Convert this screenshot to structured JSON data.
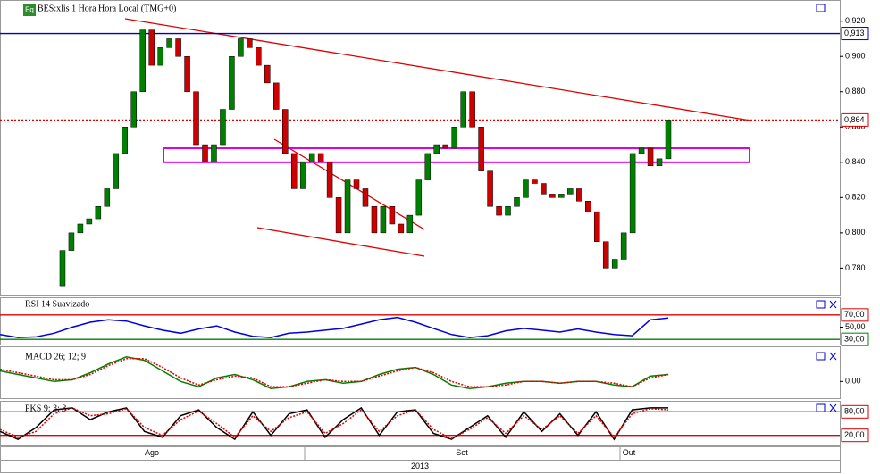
{
  "time_axis": {
    "months": [
      "Ago",
      "Set",
      "Out"
    ],
    "year": "2013"
  },
  "chart_data": [
    {
      "type": "candlestick",
      "title": "BES:xlis 1 Hora Hora Local (TMG+0)",
      "icon": "Eq",
      "color_up": "#008000",
      "color_down": "#cc0000",
      "values": [
        0.77,
        0.79,
        0.8,
        0.805,
        0.808,
        0.815,
        0.825,
        0.845,
        0.86,
        0.88,
        0.915,
        0.895,
        0.905,
        0.91,
        0.9,
        0.88,
        0.85,
        0.84,
        0.85,
        0.87,
        0.9,
        0.91,
        0.905,
        0.895,
        0.885,
        0.87,
        0.845,
        0.825,
        0.84,
        0.845,
        0.84,
        0.82,
        0.8,
        0.83,
        0.825,
        0.815,
        0.8,
        0.815,
        0.805,
        0.8,
        0.81,
        0.83,
        0.845,
        0.85,
        0.848,
        0.86,
        0.88,
        0.86,
        0.835,
        0.815,
        0.81,
        0.815,
        0.82,
        0.83,
        0.828,
        0.822,
        0.82,
        0.822,
        0.825,
        0.818,
        0.812,
        0.795,
        0.78,
        0.785,
        0.8,
        0.845,
        0.848,
        0.838,
        0.842,
        0.864
      ],
      "ylim": [
        0.764,
        0.932
      ],
      "yticks": [
        {
          "value": 0.78,
          "label": "0,780"
        },
        {
          "value": 0.8,
          "label": "0,800"
        },
        {
          "value": 0.82,
          "label": "0,820"
        },
        {
          "value": 0.84,
          "label": "0,840"
        },
        {
          "value": 0.86,
          "label": "0,860"
        },
        {
          "value": 0.88,
          "label": "0,880"
        },
        {
          "value": 0.9,
          "label": "0,900"
        },
        {
          "value": 0.92,
          "label": "0,920"
        }
      ],
      "levels": [
        {
          "value": 0.913,
          "label": "0,913",
          "color": "#0000cc",
          "style": "solid"
        },
        {
          "value": 0.864,
          "label": "0,864",
          "color": "#e00000",
          "style": "dotted"
        }
      ],
      "zone": {
        "range": [
          0.84,
          0.848
        ],
        "color": "#e000e0"
      }
    },
    {
      "type": "line",
      "title": "RSI 14 Suavizado",
      "series": [
        {
          "values": [
            38,
            33,
            34,
            40,
            50,
            58,
            62,
            60,
            52,
            45,
            40,
            47,
            52,
            42,
            35,
            33,
            40,
            42,
            45,
            48,
            55,
            62,
            66,
            58,
            48,
            38,
            33,
            36,
            44,
            48,
            45,
            42,
            47,
            42,
            38,
            36,
            62,
            65
          ],
          "color": "#0000e0",
          "style": "solid"
        }
      ],
      "ylim": [
        20,
        99
      ],
      "yticks": [
        {
          "value": 50,
          "label": "50,00"
        }
      ],
      "levels": [
        {
          "value": 70,
          "label": "70,00",
          "color": "#e00000"
        },
        {
          "value": 30,
          "label": "30,00",
          "color": "#008000"
        }
      ]
    },
    {
      "type": "line",
      "title": "MACD 26; 12; 9",
      "series": [
        {
          "values": [
            0.006,
            0.004,
            0.002,
            0.0,
            0.001,
            0.005,
            0.01,
            0.014,
            0.012,
            0.006,
            0.0,
            -0.003,
            0.002,
            0.004,
            0.001,
            -0.004,
            -0.003,
            0.0,
            0.001,
            -0.001,
            0.0,
            0.004,
            0.007,
            0.008,
            0.004,
            -0.002,
            -0.004,
            -0.003,
            -0.001,
            0.0,
            0.0,
            -0.001,
            0.0,
            0.0,
            -0.002,
            -0.003,
            0.003,
            0.004
          ],
          "color": "#008000",
          "style": "solid"
        },
        {
          "values": [
            0.007,
            0.005,
            0.003,
            0.001,
            0.001,
            0.004,
            0.009,
            0.013,
            0.013,
            0.008,
            0.002,
            -0.002,
            0.001,
            0.003,
            0.002,
            -0.003,
            -0.003,
            -0.001,
            0.001,
            0.0,
            0.0,
            0.003,
            0.006,
            0.008,
            0.005,
            0.0,
            -0.003,
            -0.003,
            -0.002,
            0.0,
            0.0,
            -0.001,
            0.0,
            0.0,
            -0.001,
            -0.003,
            0.002,
            0.004
          ],
          "color": "#e00000",
          "style": "dotted"
        }
      ],
      "ylim": [
        -0.01,
        0.02
      ],
      "yticks": [
        {
          "value": 0,
          "label": "0,00"
        }
      ],
      "levels": []
    },
    {
      "type": "line",
      "title": "PKS 9; 3; 3",
      "series": [
        {
          "values": [
            30,
            10,
            40,
            85,
            90,
            60,
            80,
            90,
            30,
            15,
            70,
            85,
            40,
            10,
            80,
            20,
            75,
            85,
            15,
            60,
            90,
            20,
            80,
            85,
            25,
            10,
            40,
            70,
            15,
            80,
            30,
            75,
            20,
            80,
            10,
            85,
            90,
            90
          ],
          "color": "#000000",
          "style": "solid"
        },
        {
          "values": [
            35,
            15,
            30,
            75,
            90,
            70,
            75,
            88,
            40,
            20,
            60,
            82,
            50,
            15,
            70,
            30,
            65,
            80,
            25,
            50,
            85,
            30,
            70,
            85,
            35,
            12,
            35,
            65,
            25,
            70,
            35,
            70,
            25,
            70,
            15,
            75,
            88,
            85
          ],
          "color": "#e00000",
          "style": "dotted"
        }
      ],
      "ylim": [
        -8,
        108
      ],
      "yticks": [],
      "levels": [
        {
          "value": 80,
          "label": "80,00",
          "color": "#e00000"
        },
        {
          "value": 20,
          "label": "20,00",
          "color": "#e00000"
        }
      ]
    }
  ]
}
